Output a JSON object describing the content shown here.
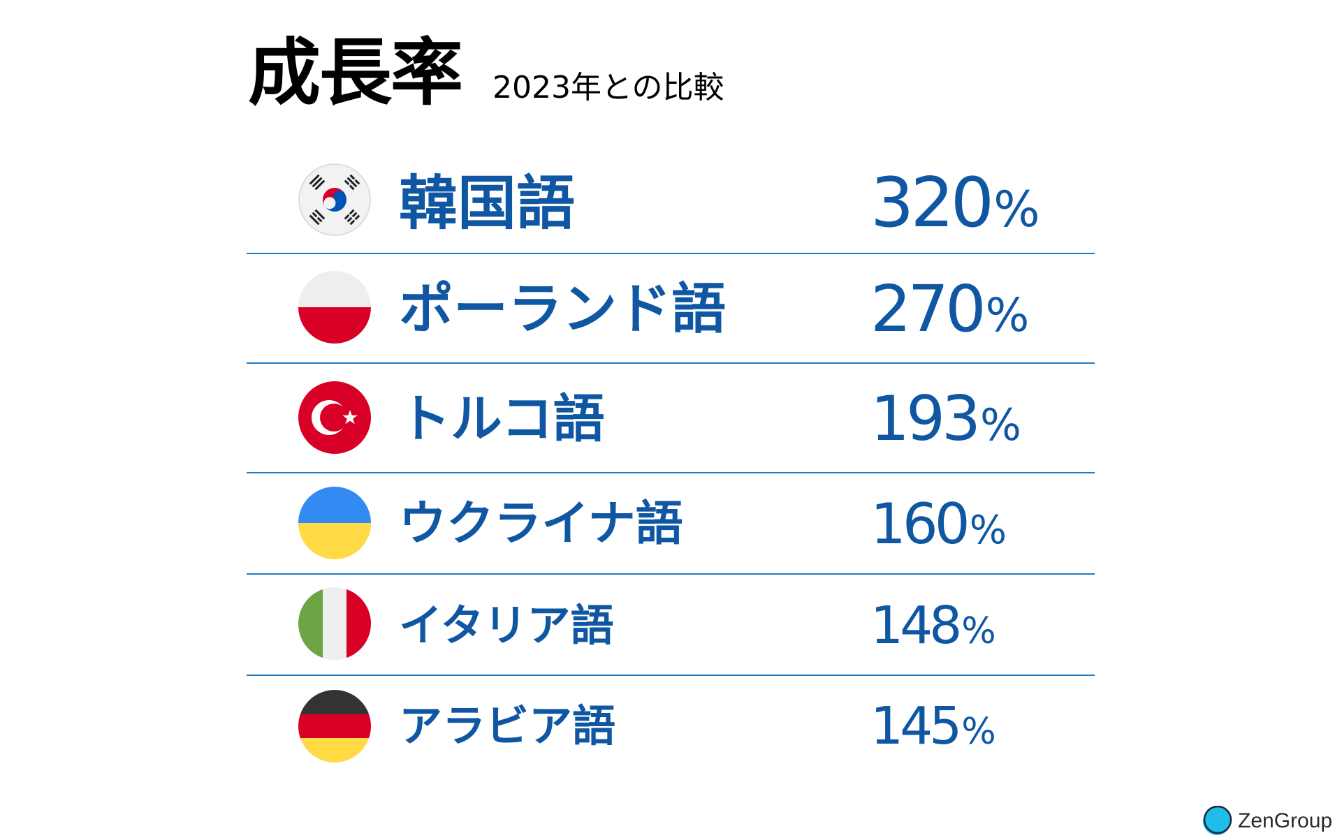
{
  "header": {
    "title": "成長率",
    "subtitle": "2023年との比較"
  },
  "rows": [
    {
      "language": "韓国語",
      "rate": "320",
      "unit": "%",
      "flag_icon": "south-korea-flag-icon"
    },
    {
      "language": "ポーランド語",
      "rate": "270",
      "unit": "%",
      "flag_icon": "poland-flag-icon"
    },
    {
      "language": "トルコ語",
      "rate": "193",
      "unit": "%",
      "flag_icon": "turkey-flag-icon"
    },
    {
      "language": "ウクライナ語",
      "rate": "160",
      "unit": "%",
      "flag_icon": "ukraine-flag-icon"
    },
    {
      "language": "イタリア語",
      "rate": "148",
      "unit": "%",
      "flag_icon": "italy-flag-icon"
    },
    {
      "language": "アラビア語",
      "rate": "145",
      "unit": "%",
      "flag_icon": "germany-flag-icon"
    }
  ],
  "logo": {
    "text": "ZenGroup"
  },
  "colors": {
    "accent_text": "#0f56a3",
    "divider": "#1f7bc4",
    "logo_mark": "#1fbde8"
  }
}
